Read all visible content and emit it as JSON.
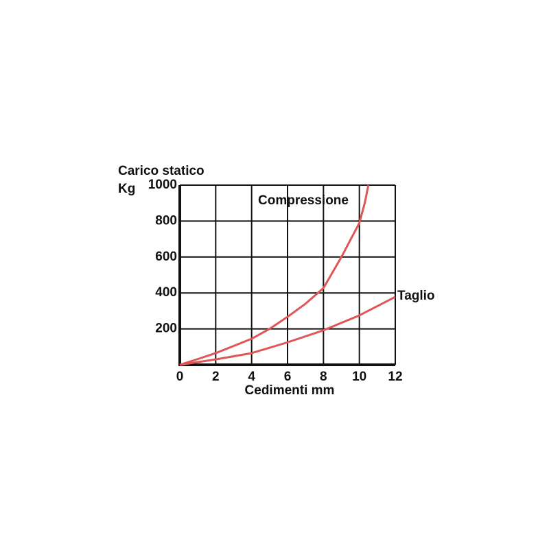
{
  "chart_data": {
    "type": "line",
    "y_label": [
      "Carico statico",
      "Kg"
    ],
    "x_label": "Cedimenti mm",
    "x": [
      0,
      1,
      2,
      3,
      4,
      5,
      6,
      7,
      8,
      9,
      10,
      10.3,
      10.5
    ],
    "series": [
      {
        "name": "Compressione",
        "color": "#e05555",
        "x": [
          0,
          1,
          2,
          3,
          4,
          5,
          6,
          7,
          8,
          9,
          10,
          10.3,
          10.5
        ],
        "values": [
          0,
          32,
          65,
          105,
          145,
          200,
          267,
          340,
          427,
          600,
          790,
          900,
          1000
        ]
      },
      {
        "name": "Taglio",
        "color": "#e05555",
        "x": [
          0,
          2,
          4,
          6,
          8,
          10,
          12
        ],
        "values": [
          0,
          30,
          65,
          125,
          192,
          275,
          378
        ]
      }
    ],
    "xlim": [
      0,
      12
    ],
    "xticks": [
      0,
      2,
      4,
      6,
      8,
      10,
      12
    ],
    "ylim": [
      0,
      1000
    ],
    "yticks": [
      200,
      400,
      600,
      800,
      1000
    ],
    "grid": true
  }
}
